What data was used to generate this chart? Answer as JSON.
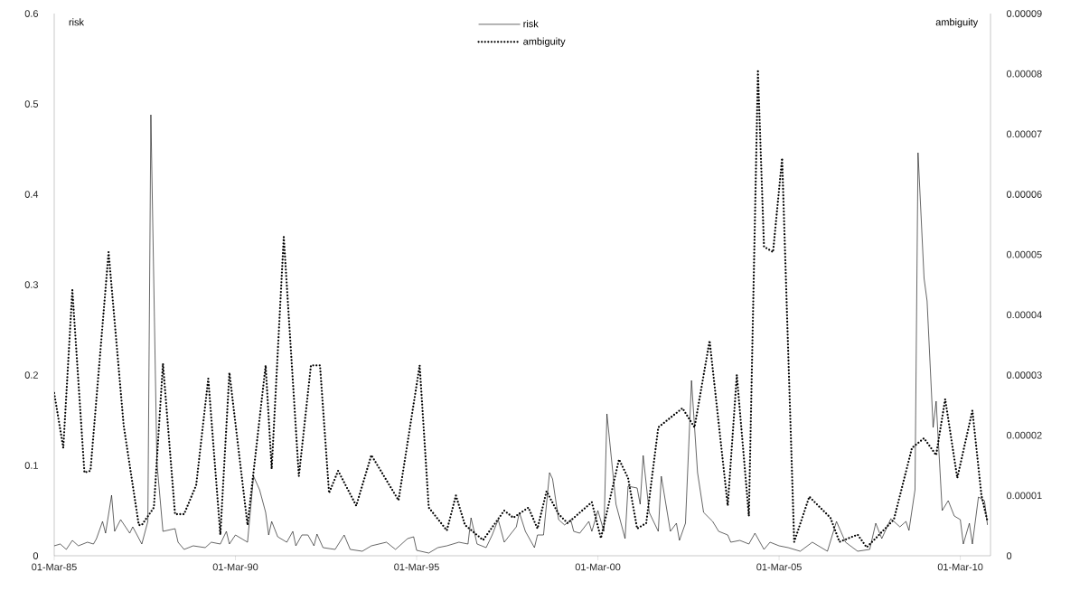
{
  "chart_data": {
    "type": "line",
    "ylabel": "risk",
    "y2label": "ambiguity",
    "legend": "top",
    "xlim": [
      "1985-03-01",
      "2011-01-01"
    ],
    "xticks": [
      {
        "value": "1985-03-01",
        "label": "01-Mar-85"
      },
      {
        "value": "1990-03-01",
        "label": "01-Mar-90"
      },
      {
        "value": "1995-03-01",
        "label": "01-Mar-95"
      },
      {
        "value": "2000-03-01",
        "label": "01-Mar-00"
      },
      {
        "value": "2005-03-01",
        "label": "01-Mar-05"
      },
      {
        "value": "2010-03-01",
        "label": "01-Mar-10"
      }
    ],
    "ylim": [
      0,
      0.6
    ],
    "yticks": [
      0,
      0.1,
      0.2,
      0.3,
      0.4,
      0.5,
      0.6
    ],
    "y2lim": [
      0,
      9e-05
    ],
    "y2ticks": [
      {
        "value": 0,
        "label": "0"
      },
      {
        "value": 1e-05,
        "label": "0.00001"
      },
      {
        "value": 2e-05,
        "label": "0.00002"
      },
      {
        "value": 3e-05,
        "label": "0.00003"
      },
      {
        "value": 4e-05,
        "label": "0.00004"
      },
      {
        "value": 5e-05,
        "label": "0.00005"
      },
      {
        "value": 6e-05,
        "label": "0.00006"
      },
      {
        "value": 7e-05,
        "label": "0.00007"
      },
      {
        "value": 8e-05,
        "label": "0.00008"
      },
      {
        "value": 9e-05,
        "label": "0.00009"
      }
    ],
    "series": [
      {
        "name": "risk",
        "color": "#000000",
        "line_style": "solid",
        "x": [
          "1985-03",
          "1985-05",
          "1985-07",
          "1985-09",
          "1985-11",
          "1986-02",
          "1986-04",
          "1986-05",
          "1986-07",
          "1986-08",
          "1986-10",
          "1986-11",
          "1987-01",
          "1987-04",
          "1987-05",
          "1987-08",
          "1987-10",
          "1987-11",
          "1988-01",
          "1988-03",
          "1988-07",
          "1988-08",
          "1988-10",
          "1989-01",
          "1989-05",
          "1989-07",
          "1989-10",
          "1989-12",
          "1990-01",
          "1990-03",
          "1990-07",
          "1990-09",
          "1990-11",
          "1991-01",
          "1991-02",
          "1991-03",
          "1991-05",
          "1991-08",
          "1991-10",
          "1991-11",
          "1992-01",
          "1992-03",
          "1992-05",
          "1992-06",
          "1992-08",
          "1992-12",
          "1993-03",
          "1993-05",
          "1993-09",
          "1993-12",
          "1994-05",
          "1994-08",
          "1994-12",
          "1995-02",
          "1995-03",
          "1995-07",
          "1995-10",
          "1996-01",
          "1996-05",
          "1996-08",
          "1996-09",
          "1996-11",
          "1997-02",
          "1997-04",
          "1997-06",
          "1997-08",
          "1997-12",
          "1998-01",
          "1998-03",
          "1998-06",
          "1998-07",
          "1998-09",
          "1998-11",
          "1998-12",
          "1999-02",
          "1999-04",
          "1999-06",
          "1999-07",
          "1999-09",
          "1999-12",
          "2000-01",
          "2000-03",
          "2000-05",
          "2000-06",
          "2000-09",
          "2000-12",
          "2001-01",
          "2001-04",
          "2001-05",
          "2001-06",
          "2001-08",
          "2001-11",
          "2001-12",
          "2002-03",
          "2002-05",
          "2002-06",
          "2002-08",
          "2002-10",
          "2002-12",
          "2003-02",
          "2003-05",
          "2003-07",
          "2003-10",
          "2003-11",
          "2004-02",
          "2004-05",
          "2004-07",
          "2004-10",
          "2004-12",
          "2005-03",
          "2005-06",
          "2005-10",
          "2006-02",
          "2006-07",
          "2006-10",
          "2007-01",
          "2007-05",
          "2007-09",
          "2007-11",
          "2008-01",
          "2008-04",
          "2008-07",
          "2008-09",
          "2008-10",
          "2008-12",
          "2009-01",
          "2009-03",
          "2009-04",
          "2009-06",
          "2009-07",
          "2009-09",
          "2009-11",
          "2010-01",
          "2010-03",
          "2010-04",
          "2010-06",
          "2010-07",
          "2010-09",
          "2010-11",
          "2010-12"
        ],
        "values": [
          0.011,
          0.013,
          0.007,
          0.017,
          0.011,
          0.015,
          0.013,
          0.019,
          0.038,
          0.025,
          0.067,
          0.027,
          0.04,
          0.025,
          0.032,
          0.013,
          0.038,
          0.488,
          0.103,
          0.027,
          0.03,
          0.015,
          0.007,
          0.011,
          0.009,
          0.015,
          0.013,
          0.027,
          0.013,
          0.023,
          0.015,
          0.088,
          0.073,
          0.048,
          0.023,
          0.038,
          0.021,
          0.015,
          0.027,
          0.011,
          0.023,
          0.023,
          0.011,
          0.024,
          0.009,
          0.007,
          0.023,
          0.007,
          0.005,
          0.011,
          0.015,
          0.007,
          0.019,
          0.021,
          0.006,
          0.003,
          0.009,
          0.011,
          0.015,
          0.013,
          0.042,
          0.013,
          0.009,
          0.023,
          0.04,
          0.015,
          0.032,
          0.048,
          0.027,
          0.009,
          0.023,
          0.023,
          0.092,
          0.085,
          0.04,
          0.034,
          0.04,
          0.027,
          0.025,
          0.038,
          0.027,
          0.05,
          0.027,
          0.157,
          0.057,
          0.019,
          0.077,
          0.075,
          0.057,
          0.111,
          0.048,
          0.027,
          0.088,
          0.027,
          0.036,
          0.017,
          0.036,
          0.194,
          0.092,
          0.048,
          0.038,
          0.027,
          0.023,
          0.015,
          0.017,
          0.013,
          0.025,
          0.007,
          0.015,
          0.011,
          0.009,
          0.005,
          0.015,
          0.005,
          0.038,
          0.015,
          0.005,
          0.007,
          0.036,
          0.019,
          0.041,
          0.032,
          0.038,
          0.028,
          0.073,
          0.446,
          0.307,
          0.282,
          0.142,
          0.171,
          0.05,
          0.061,
          0.044,
          0.04,
          0.013,
          0.036,
          0.013,
          0.065,
          0.061,
          0.034
        ]
      },
      {
        "name": "ambiguity",
        "color": "#000000",
        "line_style": "dotted",
        "axis": "y2",
        "x": [
          "1985-03",
          "1985-06",
          "1985-09",
          "1986-01",
          "1986-03",
          "1986-09",
          "1987-02",
          "1987-07",
          "1987-08",
          "1987-12",
          "1988-03",
          "1988-07",
          "1988-10",
          "1989-02",
          "1989-06",
          "1989-10",
          "1990-01",
          "1990-07",
          "1991-01",
          "1991-03",
          "1991-07",
          "1991-12",
          "1992-04",
          "1992-07",
          "1992-10",
          "1993-01",
          "1993-07",
          "1993-12",
          "1994-09",
          "1995-04",
          "1995-07",
          "1996-01",
          "1996-04",
          "1996-07",
          "1997-01",
          "1997-08",
          "1997-11",
          "1998-04",
          "1998-07",
          "1998-10",
          "1999-02",
          "1999-05",
          "2000-01",
          "2000-04",
          "2000-10",
          "2001-01",
          "2001-04",
          "2001-07",
          "2001-11",
          "2002-07",
          "2002-11",
          "2003-04",
          "2003-10",
          "2004-01",
          "2004-05",
          "2004-08",
          "2004-10",
          "2005-01",
          "2005-04",
          "2005-08",
          "2006-01",
          "2006-08",
          "2006-11",
          "2007-05",
          "2007-08",
          "2007-11",
          "2008-05",
          "2008-11",
          "2009-03",
          "2009-07",
          "2009-10",
          "2010-02",
          "2010-07",
          "2010-10",
          "2010-12"
        ],
        "values": [
          2.7e-05,
          1.79e-05,
          4.41e-05,
          1.38e-05,
          1.41e-05,
          5.04e-05,
          2.16e-05,
          5.1e-06,
          5.1e-06,
          8e-06,
          3.19e-05,
          6.9e-06,
          6.9e-06,
          1.17e-05,
          2.94e-05,
          3.5e-06,
          3.04e-05,
          5.1e-06,
          3.16e-05,
          1.44e-05,
          5.29e-05,
          1.32e-05,
          3.16e-05,
          3.16e-05,
          1.04e-05,
          1.41e-05,
          8.3e-06,
          1.67e-05,
          9.2e-06,
          3.16e-05,
          8e-06,
          4.2e-06,
          1e-05,
          5.1e-06,
          2.6e-06,
          7.5e-06,
          6.3e-06,
          8e-06,
          4.5e-06,
          1.07e-05,
          6.9e-06,
          5.4e-06,
          8.9e-06,
          2.9e-06,
          1.6e-05,
          1.29e-05,
          4.5e-06,
          5.4e-06,
          2.13e-05,
          2.45e-05,
          2.13e-05,
          3.57e-05,
          8.3e-06,
          3e-05,
          6.6e-06,
          8.04e-05,
          5.13e-05,
          5.04e-05,
          6.6e-05,
          2.3e-06,
          9.8e-06,
          6.3e-06,
          2.3e-06,
          3.5e-06,
          1.4e-06,
          2.9e-06,
          6e-06,
          1.79e-05,
          1.95e-05,
          1.67e-05,
          2.6e-05,
          1.29e-05,
          2.41e-05,
          1e-05,
          5.7e-06
        ]
      }
    ]
  }
}
